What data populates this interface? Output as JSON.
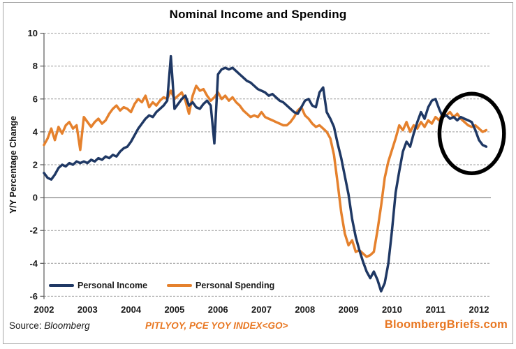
{
  "title": "Nominal Income and Spending",
  "y_axis_title": "Y/Y Percentage Change",
  "footer": {
    "source_label": "Source:",
    "source_value": "Bloomberg",
    "ticker_text": "PITLYOY, PCE YOY INDEX<GO>",
    "brand_text": "BloombergBriefs.com"
  },
  "colors": {
    "income_line": "#1F3864",
    "spending_line": "#E5812D",
    "accent_orange": "#E87722",
    "grid": "#999999",
    "zero_line": "#808080",
    "axis": "#595959",
    "tick_text": "#1a1a1a",
    "annotation": "#000000",
    "frame_border": "#a6a6a6"
  },
  "chart_data": {
    "type": "line",
    "title": "Nominal Income and Spending",
    "ylabel": "Y/Y Percentage Change",
    "ylim": [
      -6,
      10
    ],
    "ytick_step": 2,
    "y_tick_labels": [
      "10",
      "8",
      "6",
      "4",
      "2",
      "0",
      "-2",
      "-4",
      "-6"
    ],
    "y_tick_values": [
      10,
      8,
      6,
      4,
      2,
      0,
      -2,
      -4,
      -6
    ],
    "x_tick_labels": [
      "2002",
      "2003",
      "2004",
      "2005",
      "2006",
      "2007",
      "2008",
      "2009",
      "2010",
      "2011",
      "2012"
    ],
    "x_frequency": "monthly",
    "x_range": "2002-01 to 2012-03",
    "grid": "horizontal-dashed",
    "legend_position": "inside-bottom-left",
    "series": [
      {
        "name": "Personal Income",
        "color": "#1F3864",
        "values": [
          1.5,
          1.2,
          1.1,
          1.4,
          1.8,
          2.0,
          1.9,
          2.1,
          2.0,
          2.2,
          2.1,
          2.2,
          2.1,
          2.3,
          2.2,
          2.4,
          2.3,
          2.5,
          2.4,
          2.6,
          2.5,
          2.8,
          3.0,
          3.1,
          3.4,
          3.8,
          4.2,
          4.5,
          4.8,
          5.0,
          4.9,
          5.2,
          5.4,
          5.6,
          5.9,
          8.6,
          5.4,
          5.7,
          6.0,
          6.2,
          5.6,
          5.8,
          5.5,
          5.4,
          5.7,
          5.9,
          5.6,
          3.3,
          7.5,
          7.8,
          7.9,
          7.8,
          7.9,
          7.7,
          7.5,
          7.3,
          7.1,
          7.0,
          6.8,
          6.6,
          6.5,
          6.4,
          6.2,
          6.3,
          6.1,
          5.9,
          5.8,
          5.6,
          5.4,
          5.2,
          5.1,
          5.5,
          5.9,
          6.0,
          5.6,
          5.5,
          6.4,
          6.7,
          5.2,
          4.8,
          4.3,
          3.3,
          2.4,
          1.3,
          0.2,
          -1.3,
          -2.4,
          -3.2,
          -3.9,
          -4.5,
          -4.9,
          -4.5,
          -5.0,
          -5.7,
          -5.2,
          -4.0,
          -2.0,
          0.3,
          1.6,
          2.8,
          3.4,
          3.1,
          3.9,
          4.6,
          5.2,
          4.8,
          5.5,
          5.9,
          6.0,
          5.4,
          4.9,
          5.0,
          4.8,
          4.9,
          4.7,
          4.9,
          4.8,
          4.7,
          4.6,
          4.1,
          3.5,
          3.2,
          3.1
        ]
      },
      {
        "name": "Personal Spending",
        "color": "#E5812D",
        "values": [
          3.2,
          3.6,
          4.2,
          3.5,
          4.3,
          3.9,
          4.4,
          4.6,
          4.2,
          4.4,
          2.9,
          4.9,
          4.6,
          4.3,
          4.6,
          4.8,
          4.5,
          4.7,
          5.1,
          5.4,
          5.6,
          5.3,
          5.5,
          5.4,
          5.2,
          5.7,
          6.0,
          5.8,
          6.2,
          5.5,
          5.8,
          5.6,
          5.9,
          6.1,
          6.0,
          6.5,
          6.0,
          6.2,
          6.4,
          5.9,
          5.1,
          6.2,
          6.8,
          6.5,
          6.6,
          6.2,
          5.9,
          6.1,
          6.4,
          6.0,
          6.2,
          5.9,
          6.1,
          5.8,
          5.6,
          5.3,
          5.1,
          4.9,
          5.0,
          4.9,
          5.2,
          4.9,
          4.8,
          4.7,
          4.6,
          4.5,
          4.4,
          4.4,
          4.6,
          4.9,
          5.3,
          5.5,
          5.0,
          4.8,
          4.5,
          4.3,
          4.4,
          4.2,
          4.0,
          3.6,
          2.6,
          0.9,
          -0.9,
          -2.2,
          -2.9,
          -2.6,
          -3.3,
          -3.2,
          -3.4,
          -3.6,
          -3.5,
          -3.3,
          -2.0,
          -0.5,
          1.2,
          2.2,
          2.9,
          3.6,
          4.4,
          4.1,
          4.6,
          4.0,
          4.4,
          4.2,
          4.6,
          4.3,
          4.7,
          4.5,
          4.9,
          4.7,
          5.1,
          5.0,
          5.2,
          4.9,
          5.1,
          4.8,
          4.6,
          4.4,
          4.3,
          4.4,
          4.2,
          4.0,
          4.1
        ]
      }
    ],
    "annotation": {
      "shape": "ellipse",
      "purpose": "highlights late-2011/2012 divergence of income vs spending",
      "center_month_index": 118,
      "center_value": 3.9,
      "radius_months": 8.9,
      "radius_value": 2.42,
      "stroke_width": 5.5,
      "color": "#000000"
    }
  }
}
